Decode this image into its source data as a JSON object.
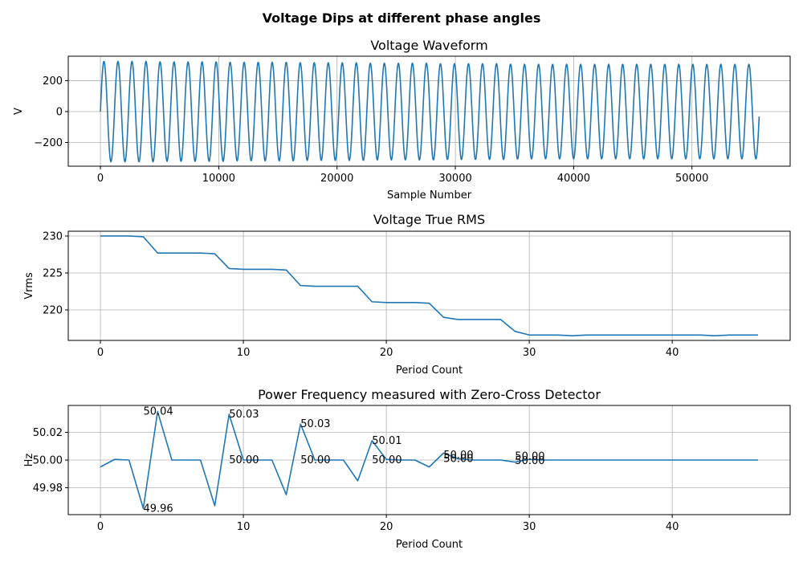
{
  "figure": {
    "suptitle": "Voltage Dips at different phase angles",
    "line_color": "#1f77b4"
  },
  "chart_data": [
    {
      "type": "line",
      "id": "waveform",
      "title": "Voltage Waveform",
      "xlabel": "Sample Number",
      "ylabel": "V",
      "xlim": [
        -2720,
        58300
      ],
      "ylim": [
        -353,
        358
      ],
      "xticks": [
        0,
        10000,
        20000,
        30000,
        40000,
        50000
      ],
      "xtick_labels": [
        "0",
        "10000",
        "20000",
        "30000",
        "40000",
        "50000"
      ],
      "yticks": [
        -200,
        0,
        200
      ],
      "ytick_labels": [
        "−200",
        "0",
        "200"
      ],
      "grid": true,
      "signal": {
        "description": "sinusoid, 47 cycles, amplitude stepping down from ~325 V to ~300 V",
        "samples": 55700,
        "cycles": 47,
        "period_amplitudes": [
          325,
          325,
          325,
          325,
          322,
          322,
          322,
          322,
          322,
          319,
          319,
          319,
          319,
          319,
          316,
          316,
          316,
          316,
          316,
          313,
          313,
          313,
          313,
          313,
          310,
          310,
          310,
          310,
          310,
          307,
          306,
          306,
          306,
          306,
          306,
          306,
          306,
          306,
          306,
          306,
          306,
          306,
          306,
          306,
          306,
          306,
          306
        ]
      }
    },
    {
      "type": "line",
      "id": "rms",
      "title": "Voltage True RMS",
      "xlabel": "Period Count",
      "ylabel": "Vrms",
      "xlim": [
        -2.25,
        48.25
      ],
      "ylim": [
        215.87,
        230.65
      ],
      "xticks": [
        0,
        10,
        20,
        30,
        40
      ],
      "xtick_labels": [
        "0",
        "10",
        "20",
        "30",
        "40"
      ],
      "yticks": [
        220,
        225,
        230
      ],
      "ytick_labels": [
        "220",
        "225",
        "230"
      ],
      "grid": true,
      "x": [
        0,
        1,
        2,
        3,
        4,
        5,
        6,
        7,
        8,
        9,
        10,
        11,
        12,
        13,
        14,
        15,
        16,
        17,
        18,
        19,
        20,
        21,
        22,
        23,
        24,
        25,
        26,
        27,
        28,
        29,
        30,
        31,
        32,
        33,
        34,
        35,
        36,
        37,
        38,
        39,
        40,
        41,
        42,
        43,
        44,
        45,
        46
      ],
      "y": [
        230.0,
        230.0,
        230.0,
        229.9,
        227.7,
        227.7,
        227.7,
        227.7,
        227.6,
        225.6,
        225.5,
        225.5,
        225.5,
        225.4,
        223.3,
        223.2,
        223.2,
        223.2,
        223.2,
        221.1,
        221.0,
        221.0,
        221.0,
        220.9,
        219.0,
        218.7,
        218.7,
        218.7,
        218.7,
        217.1,
        216.6,
        216.6,
        216.6,
        216.5,
        216.6,
        216.6,
        216.6,
        216.6,
        216.6,
        216.6,
        216.6,
        216.6,
        216.6,
        216.5,
        216.6,
        216.6,
        216.6
      ]
    },
    {
      "type": "line",
      "id": "frequency",
      "title": "Power Frequency measured with Zero-Cross Detector",
      "xlabel": "Period Count",
      "ylabel": "Hz",
      "xlim": [
        -2.25,
        48.25
      ],
      "ylim": [
        49.9606,
        50.0394
      ],
      "xticks": [
        0,
        10,
        20,
        30,
        40
      ],
      "xtick_labels": [
        "0",
        "10",
        "20",
        "30",
        "40"
      ],
      "yticks": [
        49.98,
        50.0,
        50.02
      ],
      "ytick_labels": [
        "49.98",
        "50.00",
        "50.02"
      ],
      "grid": true,
      "x": [
        0,
        1,
        2,
        3,
        4,
        5,
        6,
        7,
        8,
        9,
        10,
        11,
        12,
        13,
        14,
        15,
        16,
        17,
        18,
        19,
        20,
        21,
        22,
        23,
        24,
        25,
        26,
        27,
        28,
        29,
        30,
        31,
        32,
        33,
        34,
        35,
        36,
        37,
        38,
        39,
        40,
        41,
        42,
        43,
        44,
        45,
        46
      ],
      "y": [
        49.995,
        50.0005,
        50.0,
        49.965,
        50.035,
        50.0,
        50.0,
        50.0,
        49.967,
        50.033,
        50.0,
        50.0,
        50.0,
        49.975,
        50.026,
        50.0,
        50.0,
        50.0,
        49.985,
        50.014,
        50.0005,
        50.0,
        50.0,
        49.995,
        50.005,
        50.001,
        50.0,
        50.0,
        50.0,
        49.9985,
        50.0005,
        50.0,
        50.0,
        50.0,
        50.0,
        50.0,
        50.0,
        50.0,
        50.0,
        50.0,
        50.0,
        50.0,
        50.0,
        50.0,
        50.0,
        50.0,
        50.0
      ],
      "annotations": [
        {
          "text": "50.04",
          "x": 3.0,
          "y": 50.035
        },
        {
          "text": "49.96",
          "x": 3.0,
          "y": 49.965
        },
        {
          "text": "50.03",
          "x": 9.0,
          "y": 50.033
        },
        {
          "text": "50.00",
          "x": 9.0,
          "y": 50.0
        },
        {
          "text": "50.03",
          "x": 14.0,
          "y": 50.026
        },
        {
          "text": "50.00",
          "x": 14.0,
          "y": 50.0
        },
        {
          "text": "50.01",
          "x": 19.0,
          "y": 50.014
        },
        {
          "text": "50.00",
          "x": 19.0,
          "y": 50.0
        },
        {
          "text": "50.00",
          "x": 24.0,
          "y": 50.0035
        },
        {
          "text": "50.00",
          "x": 24.0,
          "y": 50.001
        },
        {
          "text": "50.00",
          "x": 29.0,
          "y": 50.0025
        },
        {
          "text": "50.00",
          "x": 29.0,
          "y": 49.9995
        }
      ]
    }
  ]
}
